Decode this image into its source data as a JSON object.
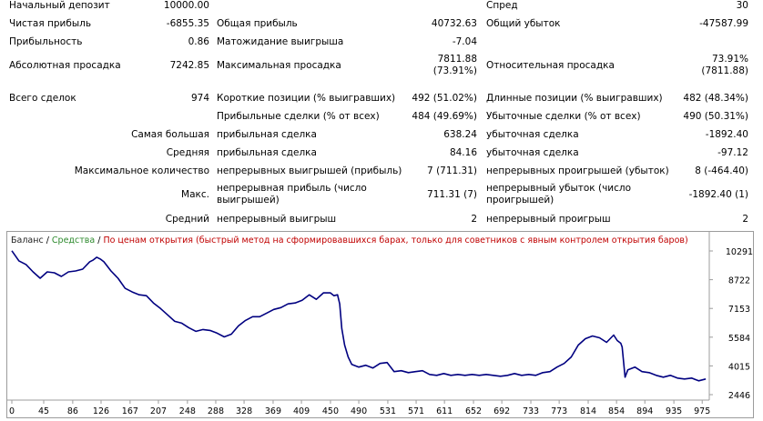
{
  "report": {
    "initial_deposit": {
      "label": "Начальный депозит",
      "value": "10000.00"
    },
    "spread": {
      "label": "Спред",
      "value": "30"
    },
    "net_profit": {
      "label": "Чистая прибыль",
      "value": "-6855.35"
    },
    "gross_profit": {
      "label": "Общая прибыль",
      "value": "40732.63"
    },
    "gross_loss": {
      "label": "Общий убыток",
      "value": "-47587.99"
    },
    "profit_factor": {
      "label": "Прибыльность",
      "value": "0.86"
    },
    "expected_payoff": {
      "label": "Матожидание выигрыша",
      "value": "-7.04"
    },
    "abs_drawdown": {
      "label": "Абсолютная просадка",
      "value": "7242.85"
    },
    "max_drawdown": {
      "label": "Максимальная просадка",
      "value_line1": "7811.88",
      "value_line2": "(73.91%)"
    },
    "rel_drawdown": {
      "label": "Относительная просадка",
      "value_line1": "73.91%",
      "value_line2": "(7811.88)"
    },
    "total_trades": {
      "label": "Всего сделок",
      "value": "974"
    },
    "short_positions": {
      "label": "Короткие позиции (% выигравших)",
      "value": "492 (51.02%)"
    },
    "long_positions": {
      "label": "Длинные позиции (% выигравших)",
      "value": "482 (48.34%)"
    },
    "profit_trades": {
      "label": "Прибыльные сделки (% от всех)",
      "value": "484 (49.69%)"
    },
    "loss_trades": {
      "label": "Убыточные сделки (% от всех)",
      "value": "490 (50.31%)"
    },
    "largest": {
      "label": "Самая большая",
      "profit_label": "прибыльная сделка",
      "profit_value": "638.24",
      "loss_label": "убыточная сделка",
      "loss_value": "-1892.40"
    },
    "average": {
      "label": "Средняя",
      "profit_label": "прибыльная сделка",
      "profit_value": "84.16",
      "loss_label": "убыточная сделка",
      "loss_value": "-97.12"
    },
    "max_consecutive": {
      "label": "Максимальное количество",
      "win_label": "непрерывных выигрышей (прибыль)",
      "win_value": "7 (711.31)",
      "loss_label": "непрерывных проигрышей (убыток)",
      "loss_value": "8 (-464.40)"
    },
    "max_amount": {
      "label": "Макс.",
      "win_label": "непрерывная прибыль (число выигрышей)",
      "win_value": "711.31 (7)",
      "loss_label": "непрерывный убыток (число проигрышей)",
      "loss_value": "-1892.40 (1)"
    },
    "avg_consecutive": {
      "label": "Средний",
      "win_label": "непрерывный выигрыш",
      "win_value": "2",
      "loss_label": "непрерывный проигрыш",
      "loss_value": "2"
    }
  },
  "chart_legend": {
    "balance": "Баланс",
    "equity": "Средства",
    "note": "По ценам открытия (быстрый метод на сформировавшихся барах, только для советников с явным контролем открытия баров)"
  },
  "colors": {
    "balance_line": "#000080",
    "equity_legend": "#2d8a2d",
    "note_legend": "#c00000",
    "border": "#9c9c9c"
  },
  "chart_data": {
    "type": "line",
    "xlabel": "",
    "ylabel": "",
    "x_ticks": [
      "0",
      "45",
      "86",
      "126",
      "167",
      "207",
      "248",
      "288",
      "328",
      "369",
      "409",
      "450",
      "490",
      "531",
      "571",
      "611",
      "652",
      "692",
      "733",
      "773",
      "814",
      "854",
      "894",
      "935",
      "975"
    ],
    "y_ticks": [
      "10291",
      "8722",
      "7153",
      "5584",
      "4015",
      "2446"
    ],
    "xlim": [
      0,
      985
    ],
    "ylim": [
      2446,
      10291
    ],
    "grid": false,
    "series": [
      {
        "name": "Баланс",
        "x": [
          0,
          10,
          20,
          30,
          40,
          50,
          60,
          70,
          80,
          90,
          100,
          110,
          115,
          120,
          125,
          130,
          140,
          150,
          160,
          170,
          180,
          190,
          200,
          210,
          220,
          230,
          240,
          250,
          260,
          270,
          280,
          290,
          300,
          310,
          320,
          330,
          340,
          350,
          360,
          370,
          380,
          390,
          400,
          410,
          420,
          430,
          440,
          450,
          455,
          460,
          463,
          466,
          470,
          475,
          480,
          490,
          500,
          510,
          520,
          530,
          540,
          550,
          560,
          570,
          580,
          590,
          600,
          610,
          620,
          630,
          640,
          650,
          660,
          670,
          680,
          690,
          700,
          710,
          720,
          730,
          740,
          750,
          760,
          770,
          780,
          790,
          800,
          810,
          820,
          830,
          840,
          850,
          855,
          860,
          862,
          866,
          870,
          880,
          890,
          900,
          910,
          920,
          930,
          940,
          950,
          960,
          970,
          975,
          980
        ],
        "y": [
          10300,
          9750,
          9550,
          9150,
          8800,
          9150,
          9100,
          8900,
          9150,
          9200,
          9300,
          9700,
          9800,
          9950,
          9850,
          9700,
          9200,
          8800,
          8250,
          8050,
          7900,
          7850,
          7450,
          7150,
          6800,
          6450,
          6350,
          6100,
          5900,
          6000,
          5950,
          5800,
          5600,
          5750,
          6200,
          6500,
          6700,
          6700,
          6900,
          7100,
          7200,
          7400,
          7450,
          7600,
          7900,
          7650,
          8000,
          8000,
          7850,
          7900,
          7400,
          6050,
          5150,
          4500,
          4100,
          3950,
          4050,
          3900,
          4150,
          4200,
          3700,
          3750,
          3650,
          3700,
          3750,
          3550,
          3500,
          3600,
          3500,
          3550,
          3500,
          3550,
          3500,
          3550,
          3500,
          3450,
          3500,
          3600,
          3500,
          3550,
          3500,
          3650,
          3700,
          3950,
          4150,
          4500,
          5150,
          5500,
          5650,
          5550,
          5300,
          5700,
          5400,
          5250,
          5050,
          3400,
          3800,
          3950,
          3700,
          3650,
          3500,
          3400,
          3500,
          3350,
          3300,
          3350,
          3200,
          3250,
          3300
        ]
      }
    ]
  }
}
